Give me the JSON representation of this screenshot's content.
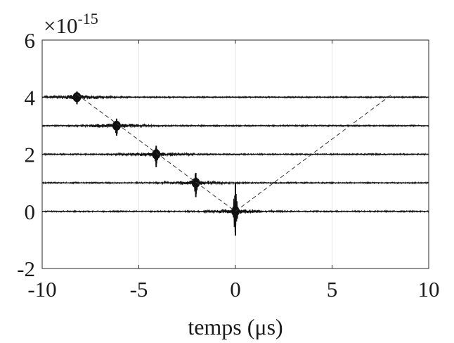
{
  "chart_data": {
    "type": "line",
    "xlabel": "temps (μs)",
    "ylabel": "",
    "xlim": [
      -10,
      10
    ],
    "ylim": [
      -2,
      6
    ],
    "y_multiplier": "×10",
    "y_multiplier_exponent": "-15",
    "x_ticks": [
      -10,
      -5,
      0,
      5,
      10
    ],
    "x_tick_labels": [
      "-10",
      "-5",
      "0",
      "5",
      "10"
    ],
    "y_ticks": [
      -2,
      0,
      2,
      4,
      6
    ],
    "y_tick_labels": [
      "-2",
      "0",
      "2",
      "4",
      "6"
    ],
    "grid": "vertical",
    "traces": [
      {
        "offset": 0,
        "peak_x": 0,
        "peak_up": 1.0,
        "peak_down": 0.85
      },
      {
        "offset": 1,
        "peak_x": -2.05,
        "peak_up": 0.35,
        "peak_down": 0.5
      },
      {
        "offset": 2,
        "peak_x": -4.1,
        "peak_up": 0.3,
        "peak_down": 0.45
      },
      {
        "offset": 3,
        "peak_x": -6.15,
        "peak_up": 0.25,
        "peak_down": 0.35
      },
      {
        "offset": 4,
        "peak_x": -8.2,
        "peak_up": 0.2,
        "peak_down": 0.25
      }
    ],
    "dashed_lines": [
      {
        "x": [
          -8.2,
          0
        ],
        "y": [
          4.1,
          0
        ]
      },
      {
        "x": [
          0,
          8.1
        ],
        "y": [
          0,
          4.1
        ]
      }
    ],
    "colors": {
      "trace": "#111111",
      "axis": "#262626",
      "grid": "#e6e6e6",
      "dashed": "#333333"
    }
  }
}
